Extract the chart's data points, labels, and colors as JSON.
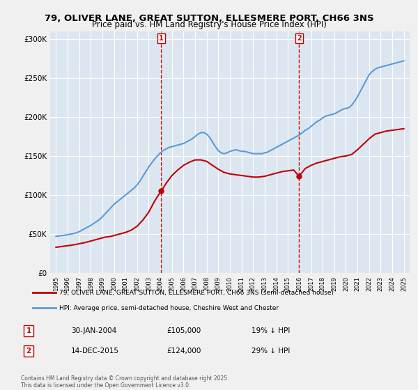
{
  "title": "79, OLIVER LANE, GREAT SUTTON, ELLESMERE PORT, CH66 3NS",
  "subtitle": "Price paid vs. HM Land Registry's House Price Index (HPI)",
  "legend_line1": "79, OLIVER LANE, GREAT SUTTON, ELLESMERE PORT, CH66 3NS (semi-detached house)",
  "legend_line2": "HPI: Average price, semi-detached house, Cheshire West and Chester",
  "footer": "Contains HM Land Registry data © Crown copyright and database right 2025.\nThis data is licensed under the Open Government Licence v3.0.",
  "annotation1_label": "1",
  "annotation1_date": "30-JAN-2004",
  "annotation1_price": "£105,000",
  "annotation1_hpi": "19% ↓ HPI",
  "annotation2_label": "2",
  "annotation2_date": "14-DEC-2015",
  "annotation2_price": "£124,000",
  "annotation2_hpi": "29% ↓ HPI",
  "sale1_x": 2004.08,
  "sale1_y": 105000,
  "sale2_x": 2015.96,
  "sale2_y": 124000,
  "vline1_x": 2004.08,
  "vline2_x": 2015.96,
  "hpi_color": "#5b9bd5",
  "price_color": "#c00000",
  "vline_color": "#c00000",
  "bg_color": "#dce6f1",
  "plot_bg": "#ffffff",
  "ylim": [
    0,
    310000
  ],
  "xlim": [
    1994.5,
    2025.5
  ],
  "yticks": [
    0,
    50000,
    100000,
    150000,
    200000,
    250000,
    300000
  ],
  "ytick_labels": [
    "£0",
    "£50K",
    "£100K",
    "£150K",
    "£200K",
    "£250K",
    "£300K"
  ],
  "xticks": [
    1995,
    1996,
    1997,
    1998,
    1999,
    2000,
    2001,
    2002,
    2003,
    2004,
    2005,
    2006,
    2007,
    2008,
    2009,
    2010,
    2011,
    2012,
    2013,
    2014,
    2015,
    2016,
    2017,
    2018,
    2019,
    2020,
    2021,
    2022,
    2023,
    2024,
    2025
  ],
  "hpi_data_x": [
    1995.0,
    1995.25,
    1995.5,
    1995.75,
    1996.0,
    1996.25,
    1996.5,
    1996.75,
    1997.0,
    1997.25,
    1997.5,
    1997.75,
    1998.0,
    1998.25,
    1998.5,
    1998.75,
    1999.0,
    1999.25,
    1999.5,
    1999.75,
    2000.0,
    2000.25,
    2000.5,
    2000.75,
    2001.0,
    2001.25,
    2001.5,
    2001.75,
    2002.0,
    2002.25,
    2002.5,
    2002.75,
    2003.0,
    2003.25,
    2003.5,
    2003.75,
    2004.0,
    2004.25,
    2004.5,
    2004.75,
    2005.0,
    2005.25,
    2005.5,
    2005.75,
    2006.0,
    2006.25,
    2006.5,
    2006.75,
    2007.0,
    2007.25,
    2007.5,
    2007.75,
    2008.0,
    2008.25,
    2008.5,
    2008.75,
    2009.0,
    2009.25,
    2009.5,
    2009.75,
    2010.0,
    2010.25,
    2010.5,
    2010.75,
    2011.0,
    2011.25,
    2011.5,
    2011.75,
    2012.0,
    2012.25,
    2012.5,
    2012.75,
    2013.0,
    2013.25,
    2013.5,
    2013.75,
    2014.0,
    2014.25,
    2014.5,
    2014.75,
    2015.0,
    2015.25,
    2015.5,
    2015.75,
    2016.0,
    2016.25,
    2016.5,
    2016.75,
    2017.0,
    2017.25,
    2017.5,
    2017.75,
    2018.0,
    2018.25,
    2018.5,
    2018.75,
    2019.0,
    2019.25,
    2019.5,
    2019.75,
    2020.0,
    2020.25,
    2020.5,
    2020.75,
    2021.0,
    2021.25,
    2021.5,
    2021.75,
    2022.0,
    2022.25,
    2022.5,
    2022.75,
    2023.0,
    2023.25,
    2023.5,
    2023.75,
    2024.0,
    2024.25,
    2024.5,
    2024.75,
    2025.0
  ],
  "hpi_data_y": [
    47000,
    47500,
    48000,
    48500,
    49000,
    49800,
    50500,
    51500,
    53000,
    55000,
    57000,
    59000,
    61000,
    63500,
    66000,
    68500,
    72000,
    76000,
    80000,
    84000,
    88000,
    91000,
    94000,
    97000,
    100000,
    103000,
    106000,
    109000,
    113000,
    118000,
    124000,
    130000,
    136000,
    141000,
    146000,
    150000,
    154000,
    157000,
    159000,
    161000,
    162000,
    163000,
    164000,
    165000,
    166000,
    168000,
    170000,
    172000,
    175000,
    178000,
    180000,
    180000,
    178000,
    174000,
    168000,
    162000,
    157000,
    154000,
    153000,
    154000,
    156000,
    157000,
    158000,
    157000,
    156000,
    156000,
    155000,
    154000,
    153000,
    153000,
    153000,
    153000,
    154000,
    155000,
    157000,
    159000,
    161000,
    163000,
    165000,
    167000,
    169000,
    171000,
    173000,
    175000,
    177000,
    180000,
    183000,
    185000,
    188000,
    191000,
    194000,
    196000,
    199000,
    201000,
    202000,
    203000,
    204000,
    206000,
    208000,
    210000,
    211000,
    212000,
    215000,
    220000,
    226000,
    233000,
    240000,
    247000,
    254000,
    258000,
    261000,
    263000,
    264000,
    265000,
    266000,
    267000,
    268000,
    269000,
    270000,
    271000,
    272000
  ],
  "price_data_x": [
    1995.0,
    1995.5,
    1996.0,
    1996.5,
    1997.0,
    1997.5,
    1997.75,
    1998.0,
    1998.25,
    1998.5,
    1998.75,
    1999.0,
    1999.25,
    1999.75,
    2000.0,
    2000.5,
    2001.0,
    2001.5,
    2002.0,
    2002.5,
    2003.0,
    2003.25,
    2003.5,
    2003.75,
    2004.08,
    2004.5,
    2005.0,
    2005.5,
    2006.0,
    2006.5,
    2007.0,
    2007.5,
    2008.0,
    2008.5,
    2009.0,
    2009.5,
    2010.0,
    2010.5,
    2011.0,
    2011.5,
    2012.0,
    2012.5,
    2013.0,
    2013.5,
    2014.0,
    2014.5,
    2015.0,
    2015.5,
    2015.96,
    2016.5,
    2017.0,
    2017.5,
    2018.0,
    2018.5,
    2019.0,
    2019.5,
    2020.0,
    2020.5,
    2021.0,
    2021.5,
    2022.0,
    2022.5,
    2023.0,
    2023.5,
    2024.0,
    2024.5,
    2025.0
  ],
  "price_data_y": [
    33000,
    34000,
    35000,
    36000,
    37500,
    39000,
    40000,
    41000,
    42000,
    43000,
    44000,
    45000,
    46000,
    47000,
    48000,
    50000,
    52000,
    55000,
    60000,
    68000,
    78000,
    85000,
    92000,
    98000,
    105000,
    115000,
    125000,
    132000,
    138000,
    142000,
    145000,
    145000,
    143000,
    138000,
    133000,
    129000,
    127000,
    126000,
    125000,
    124000,
    123000,
    123000,
    124000,
    126000,
    128000,
    130000,
    131000,
    132000,
    124000,
    134000,
    138000,
    141000,
    143000,
    145000,
    147000,
    149000,
    150000,
    152000,
    158000,
    165000,
    172000,
    178000,
    180000,
    182000,
    183000,
    184000,
    185000
  ]
}
